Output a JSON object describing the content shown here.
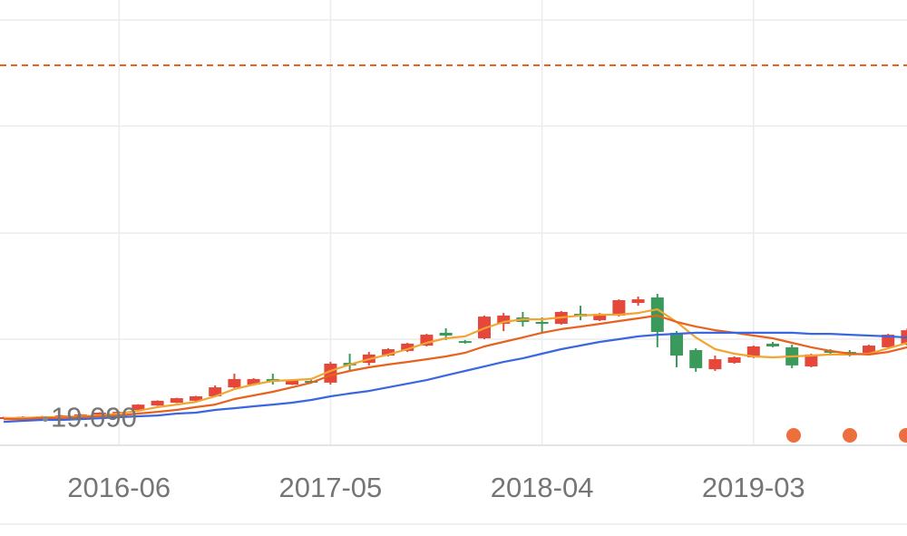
{
  "chart_data": {
    "type": "candlestick",
    "categories": [
      null,
      null,
      null,
      null,
      null,
      null,
      "2016-06",
      null,
      null,
      null,
      null,
      null,
      null,
      null,
      null,
      null,
      null,
      "2017-05",
      null,
      null,
      null,
      null,
      null,
      null,
      null,
      null,
      null,
      null,
      "2018-04",
      null,
      null,
      null,
      null,
      null,
      null,
      null,
      null,
      null,
      null,
      "2019-03",
      null,
      null,
      null,
      null,
      null,
      null,
      null,
      null
    ],
    "open": [
      19.14,
      19.16,
      19.18,
      19.22,
      19.26,
      19.33,
      19.37,
      19.52,
      19.73,
      19.86,
      19.95,
      20.16,
      20.58,
      20.71,
      20.97,
      20.71,
      20.88,
      20.8,
      21.73,
      21.73,
      22.07,
      22.29,
      22.54,
      23.14,
      22.75,
      22.88,
      23.56,
      23.86,
      23.65,
      23.56,
      24.03,
      23.73,
      23.95,
      24.54,
      24.8,
      23.14,
      22.33,
      21.43,
      21.73,
      21.99,
      22.63,
      22.46,
      21.56,
      22.29,
      22.24,
      22.2,
      22.46,
      22.58
    ],
    "high": [
      19.2,
      19.22,
      19.24,
      19.28,
      19.33,
      19.41,
      19.45,
      19.79,
      19.97,
      20.09,
      20.18,
      20.67,
      21.22,
      21.01,
      21.22,
      20.95,
      20.92,
      21.78,
      22.16,
      22.24,
      22.41,
      22.67,
      23.09,
      23.35,
      22.8,
      23.95,
      24.07,
      24.12,
      23.86,
      24.16,
      24.41,
      24.07,
      24.71,
      24.84,
      24.97,
      23.22,
      22.41,
      22.07,
      22.03,
      22.54,
      22.71,
      22.58,
      22.16,
      22.37,
      22.33,
      22.58,
      23.09,
      23.35
    ],
    "low": [
      19.12,
      19.14,
      19.16,
      19.2,
      19.24,
      19.31,
      19.35,
      19.5,
      19.71,
      19.84,
      19.93,
      20.12,
      20.46,
      20.67,
      20.71,
      20.69,
      20.77,
      20.71,
      21.39,
      21.61,
      22.03,
      22.24,
      22.5,
      22.8,
      22.63,
      22.84,
      23.22,
      23.43,
      23.18,
      23.52,
      23.73,
      23.69,
      23.9,
      24.41,
      22.46,
      21.52,
      21.31,
      21.35,
      21.69,
      21.95,
      22.46,
      21.48,
      21.52,
      22.16,
      22.03,
      22.16,
      22.41,
      22.54
    ],
    "close": [
      19.18,
      19.2,
      19.22,
      19.26,
      19.31,
      19.39,
      19.43,
      19.77,
      19.95,
      20.07,
      20.16,
      20.58,
      20.97,
      20.97,
      20.84,
      20.92,
      20.8,
      21.69,
      21.61,
      22.12,
      22.37,
      22.63,
      23.05,
      23.01,
      22.67,
      23.9,
      23.95,
      23.65,
      23.56,
      24.12,
      23.9,
      24.03,
      24.67,
      24.71,
      23.18,
      22.07,
      21.48,
      21.9,
      21.99,
      22.5,
      22.5,
      21.61,
      22.12,
      22.2,
      22.16,
      22.54,
      23.05,
      23.26
    ],
    "up_color": "#e5483b",
    "down_color": "#3a9a5b",
    "lines": [
      {
        "color": "#f2a531",
        "values": [
          19.14,
          19.14,
          19.18,
          19.18,
          19.22,
          19.26,
          19.35,
          19.48,
          19.65,
          19.77,
          19.9,
          20.16,
          20.5,
          20.71,
          20.88,
          20.92,
          20.97,
          21.35,
          21.65,
          21.9,
          22.12,
          22.37,
          22.67,
          22.88,
          22.97,
          23.35,
          23.65,
          23.77,
          23.77,
          23.86,
          23.95,
          23.99,
          23.99,
          24.07,
          24.24,
          23.65,
          22.92,
          22.37,
          22.16,
          22.03,
          21.99,
          22.03,
          22.07,
          22.12,
          22.12,
          22.16,
          22.41,
          22.67
        ]
      },
      {
        "color": "#e8621f",
        "values": [
          19.09,
          19.09,
          19.14,
          19.14,
          19.18,
          19.22,
          19.26,
          19.35,
          19.43,
          19.52,
          19.65,
          19.77,
          20.03,
          20.2,
          20.37,
          20.58,
          20.8,
          21.14,
          21.35,
          21.52,
          21.65,
          21.77,
          21.9,
          22.03,
          22.2,
          22.5,
          22.71,
          22.92,
          23.14,
          23.31,
          23.43,
          23.56,
          23.69,
          23.82,
          23.95,
          23.65,
          23.43,
          23.26,
          23.14,
          23.01,
          22.88,
          22.67,
          22.46,
          22.29,
          22.16,
          22.12,
          22.24,
          22.46
        ]
      },
      {
        "color": "#3a66e0",
        "values": [
          18.96,
          19.01,
          19.05,
          19.05,
          19.09,
          19.13,
          19.18,
          19.22,
          19.26,
          19.35,
          19.39,
          19.52,
          19.6,
          19.69,
          19.77,
          19.86,
          19.99,
          20.16,
          20.29,
          20.41,
          20.58,
          20.75,
          20.92,
          21.14,
          21.35,
          21.56,
          21.77,
          21.94,
          22.16,
          22.37,
          22.54,
          22.71,
          22.84,
          22.97,
          23.05,
          23.09,
          23.14,
          23.14,
          23.14,
          23.14,
          23.14,
          23.14,
          23.09,
          23.09,
          23.05,
          23.01,
          22.97,
          22.92
        ]
      }
    ],
    "reference_line": {
      "value": 35.69,
      "color": "#e8621f"
    },
    "min_label": {
      "value": 19.09,
      "label": "19.090"
    },
    "ylim": [
      17.86,
      37.82
    ]
  }
}
